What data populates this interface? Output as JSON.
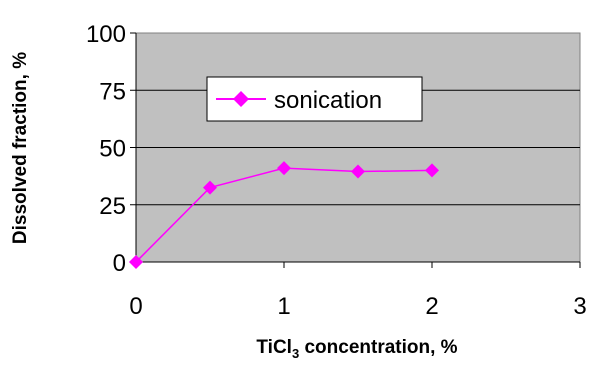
{
  "chart_data": {
    "type": "line",
    "title": "",
    "xlabel": "TiCl",
    "xlabel_sub": "3",
    "xlabel_rest": " concentration, %",
    "ylabel": "Dissolved fraction, %",
    "xlim": [
      0,
      3
    ],
    "ylim": [
      0,
      100
    ],
    "xticks": [
      0,
      1,
      2,
      3
    ],
    "yticks": [
      0,
      25,
      50,
      75,
      100
    ],
    "grid": "horizontal",
    "plot_background": "#c0c0c0",
    "legend_position": "upper-center",
    "series": [
      {
        "name": "sonication",
        "color": "#ff00ff",
        "marker": "diamond",
        "x": [
          0,
          0.5,
          1,
          1.5,
          2
        ],
        "y": [
          0,
          32.5,
          41,
          39.5,
          40
        ]
      }
    ]
  }
}
